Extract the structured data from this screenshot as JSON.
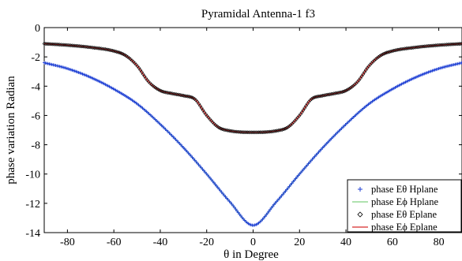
{
  "chart_data": {
    "type": "scatter",
    "title": "Pyramidal Antenna-1 f3",
    "xlabel": "θ in Degree",
    "ylabel": "phase variation Radian",
    "xlim": [
      -90,
      90
    ],
    "ylim": [
      -14,
      0
    ],
    "xticks": [
      -80,
      -60,
      -40,
      -20,
      0,
      20,
      40,
      60,
      80
    ],
    "yticks": [
      0,
      -2,
      -4,
      -6,
      -8,
      -10,
      -12,
      -14
    ],
    "grid": false,
    "legend_position": "bottom-right",
    "series": [
      {
        "name": "phase Eθ Hplane",
        "color": "#1f3fd6",
        "marker": "plus",
        "x": [
          -90,
          -80,
          -70,
          -60,
          -50,
          -40,
          -30,
          -20,
          -10,
          0,
          10,
          20,
          30,
          40,
          50,
          60,
          70,
          80,
          90
        ],
        "y": [
          -2.4,
          -2.8,
          -3.4,
          -4.2,
          -5.2,
          -6.6,
          -8.2,
          -10.0,
          -11.9,
          -13.5,
          -11.9,
          -10.0,
          -8.2,
          -6.6,
          -5.2,
          -4.2,
          -3.4,
          -2.8,
          -2.4
        ]
      },
      {
        "name": "phase Eϕ Hplane",
        "color": "#7fd17f",
        "marker": "line",
        "x": [
          -90,
          -80,
          -70,
          -60,
          -50,
          -40,
          -30,
          -20,
          -10,
          0,
          10,
          20,
          30,
          40,
          50,
          60,
          70,
          80,
          90
        ],
        "y": [
          -2.4,
          -2.8,
          -3.4,
          -4.2,
          -5.2,
          -6.6,
          -8.2,
          -10.0,
          -11.9,
          -13.5,
          -11.9,
          -10.0,
          -8.2,
          -6.6,
          -5.2,
          -4.2,
          -3.4,
          -2.8,
          -2.4
        ]
      },
      {
        "name": "phase Eθ  Eplane",
        "color": "#000000",
        "marker": "diamond",
        "x": [
          -90,
          -80,
          -70,
          -60,
          -55,
          -50,
          -45,
          -40,
          -35,
          -30,
          -25,
          -20,
          -15,
          -10,
          0,
          10,
          15,
          20,
          25,
          30,
          35,
          40,
          45,
          50,
          55,
          60,
          70,
          80,
          90
        ],
        "y": [
          -1.1,
          -1.2,
          -1.35,
          -1.6,
          -1.9,
          -2.6,
          -3.7,
          -4.3,
          -4.5,
          -4.65,
          -4.9,
          -6.0,
          -6.8,
          -7.05,
          -7.15,
          -7.05,
          -6.8,
          -6.0,
          -4.9,
          -4.65,
          -4.5,
          -4.3,
          -3.7,
          -2.6,
          -1.9,
          -1.6,
          -1.35,
          -1.2,
          -1.1
        ]
      },
      {
        "name": "phase Eϕ Eplane",
        "color": "#d62a2a",
        "marker": "line",
        "x": [
          -90,
          -80,
          -70,
          -60,
          -55,
          -50,
          -45,
          -40,
          -35,
          -30,
          -25,
          -20,
          -15,
          -10,
          0,
          10,
          15,
          20,
          25,
          30,
          35,
          40,
          45,
          50,
          55,
          60,
          70,
          80,
          90
        ],
        "y": [
          -1.1,
          -1.2,
          -1.35,
          -1.6,
          -1.9,
          -2.6,
          -3.7,
          -4.3,
          -4.5,
          -4.65,
          -4.9,
          -6.0,
          -6.8,
          -7.05,
          -7.15,
          -7.05,
          -6.8,
          -6.0,
          -4.9,
          -4.65,
          -4.5,
          -4.3,
          -3.7,
          -2.6,
          -1.9,
          -1.6,
          -1.35,
          -1.2,
          -1.1
        ]
      }
    ]
  }
}
